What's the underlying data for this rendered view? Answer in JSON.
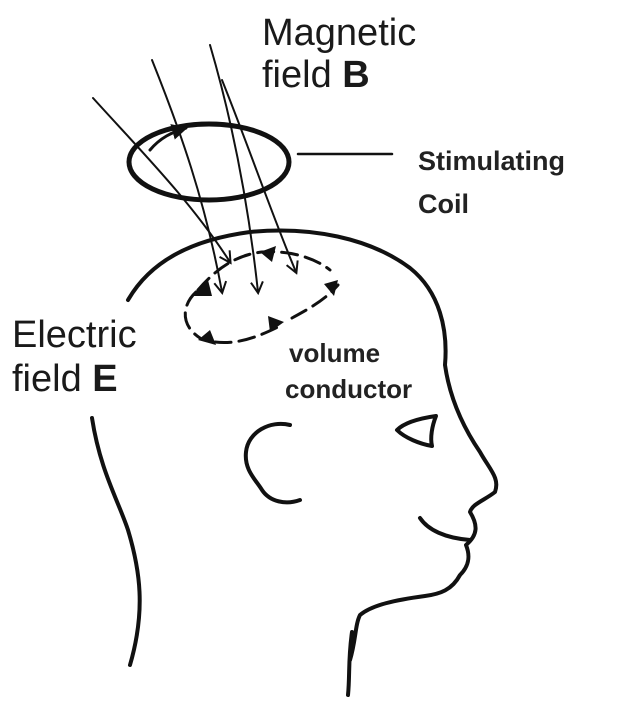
{
  "labels": {
    "magnetic_line1": "Magnetic",
    "magnetic_line2_prefix": "field ",
    "magnetic_symbol": "B",
    "coil_line1": "Stimulating",
    "coil_line2": "Coil",
    "electric_line1": "Electric",
    "electric_line2_prefix": "field ",
    "electric_symbol": "E",
    "volume_line1": "volume",
    "volume_line2": "conductor"
  },
  "colors": {
    "ink": "#111111",
    "background": "#ffffff"
  }
}
